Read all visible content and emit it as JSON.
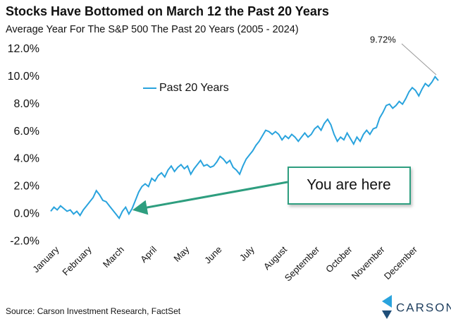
{
  "chart_data": {
    "type": "line",
    "title": "Stocks Have Bottomed on March 12 the Past 20 Years",
    "subtitle": "Average Year For The S&P 500 The Past 20 Years (2005 - 2024)",
    "categories": [
      "January",
      null,
      null,
      null,
      null,
      null,
      null,
      null,
      null,
      null,
      "February",
      null,
      null,
      null,
      null,
      null,
      null,
      null,
      null,
      null,
      "March",
      null,
      null,
      null,
      null,
      null,
      null,
      null,
      null,
      null,
      "April",
      null,
      null,
      null,
      null,
      null,
      null,
      null,
      null,
      null,
      "May",
      null,
      null,
      null,
      null,
      null,
      null,
      null,
      null,
      null,
      "June",
      null,
      null,
      null,
      null,
      null,
      null,
      null,
      null,
      null,
      "July",
      null,
      null,
      null,
      null,
      null,
      null,
      null,
      null,
      null,
      "August",
      null,
      null,
      null,
      null,
      null,
      null,
      null,
      null,
      null,
      "September",
      null,
      null,
      null,
      null,
      null,
      null,
      null,
      null,
      null,
      "October",
      null,
      null,
      null,
      null,
      null,
      null,
      null,
      null,
      null,
      "November",
      null,
      null,
      null,
      null,
      null,
      null,
      null,
      null,
      null,
      "December",
      null,
      null,
      null,
      null,
      null,
      null,
      null,
      null,
      null
    ],
    "series": [
      {
        "name": "Past 20 Years",
        "color": "#29a3dd",
        "values": [
          0.2,
          0.5,
          0.3,
          0.6,
          0.4,
          0.2,
          0.3,
          0.0,
          0.2,
          -0.1,
          0.3,
          0.6,
          0.9,
          1.2,
          1.7,
          1.4,
          1.0,
          0.9,
          0.6,
          0.3,
          0.0,
          -0.3,
          0.2,
          0.5,
          0.0,
          0.4,
          1.0,
          1.6,
          2.0,
          2.2,
          2.0,
          2.6,
          2.4,
          2.8,
          3.0,
          2.7,
          3.2,
          3.5,
          3.1,
          3.4,
          3.6,
          3.3,
          3.5,
          2.9,
          3.3,
          3.6,
          3.9,
          3.5,
          3.6,
          3.4,
          3.5,
          3.8,
          4.2,
          4.0,
          3.7,
          3.9,
          3.4,
          3.2,
          2.9,
          3.5,
          4.0,
          4.3,
          4.6,
          5.0,
          5.3,
          5.7,
          6.1,
          6.0,
          5.8,
          6.0,
          5.8,
          5.4,
          5.7,
          5.5,
          5.8,
          5.6,
          5.3,
          5.6,
          5.9,
          5.6,
          5.8,
          6.2,
          6.4,
          6.1,
          6.6,
          6.9,
          6.5,
          5.8,
          5.3,
          5.6,
          5.4,
          5.9,
          5.5,
          5.1,
          5.6,
          5.3,
          5.8,
          6.1,
          5.8,
          6.2,
          6.3,
          7.0,
          7.4,
          7.9,
          8.0,
          7.7,
          7.9,
          8.2,
          8.0,
          8.4,
          8.9,
          9.2,
          9.0,
          8.6,
          9.1,
          9.5,
          9.3,
          9.6,
          10.0,
          9.72
        ]
      }
    ],
    "ylim": [
      -2.5,
      12.5
    ],
    "yticks": [
      {
        "value": -2,
        "label": "-2.0%"
      },
      {
        "value": 0,
        "label": "0.0%"
      },
      {
        "value": 2,
        "label": "2.0%"
      },
      {
        "value": 4,
        "label": "4.0%"
      },
      {
        "value": 6,
        "label": "6.0%"
      },
      {
        "value": 8,
        "label": "8.0%"
      },
      {
        "value": 10,
        "label": "10.0%"
      },
      {
        "value": 12,
        "label": "12.0%"
      }
    ],
    "end_label": "9.72%",
    "callout": "You are here",
    "source": "Source: Carson Investment Research, FactSet",
    "logo": "CARSON"
  }
}
